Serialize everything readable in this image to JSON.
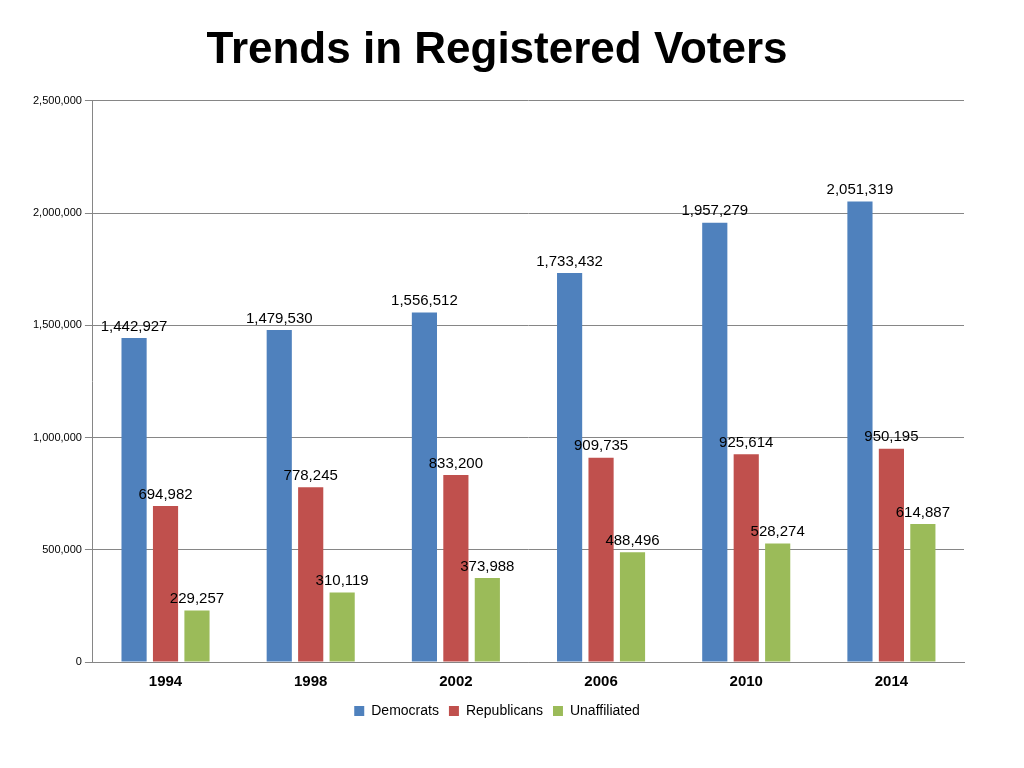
{
  "chart_data": {
    "type": "bar",
    "title": "Trends in Registered Voters",
    "categories": [
      "1994",
      "1998",
      "2002",
      "2006",
      "2010",
      "2014"
    ],
    "series": [
      {
        "name": "Democrats",
        "color": "#4f81bd",
        "values": [
          1442927,
          1479530,
          1556512,
          1733432,
          1957279,
          2051319
        ],
        "value_labels": [
          "1,442,927",
          "1,479,530",
          "1,556,512",
          "1,733,432",
          "1,957,279",
          "2,051,319"
        ]
      },
      {
        "name": "Republicans",
        "color": "#c0504d",
        "values": [
          694982,
          778245,
          833200,
          909735,
          925614,
          950195
        ],
        "value_labels": [
          "694,982",
          "778,245",
          "833,200",
          "909,735",
          "925,614",
          "950,195"
        ]
      },
      {
        "name": "Unaffiliated",
        "color": "#9bbb59",
        "values": [
          229257,
          310119,
          373988,
          488496,
          528274,
          614887
        ],
        "value_labels": [
          "229,257",
          "310,119",
          "373,988",
          "488,496",
          "528,274",
          "614,887"
        ]
      }
    ],
    "ylim": [
      0,
      2500000
    ],
    "yticks": [
      0,
      {
        "value": 500000,
        "label": "500,000"
      },
      {
        "value": 1000000,
        "label": "1,000,000"
      },
      {
        "value": 1500000,
        "label": "1,500,000"
      },
      {
        "value": 2000000,
        "label": "2,000,000"
      },
      {
        "value": 2500000,
        "label": "2,500,000"
      }
    ],
    "grid": true,
    "legend": "bottom",
    "data_labels": true
  }
}
